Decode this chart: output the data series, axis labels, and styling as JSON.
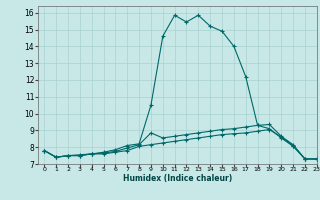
{
  "xlabel": "Humidex (Indice chaleur)",
  "background_color": "#c8e8e8",
  "grid_color": "#a8d0d0",
  "line_color": "#006868",
  "xlim": [
    -0.5,
    23
  ],
  "ylim": [
    7,
    16.4
  ],
  "yticks": [
    7,
    8,
    9,
    10,
    11,
    12,
    13,
    14,
    15,
    16
  ],
  "xticks": [
    0,
    1,
    2,
    3,
    4,
    5,
    6,
    7,
    8,
    9,
    10,
    11,
    12,
    13,
    14,
    15,
    16,
    17,
    18,
    19,
    20,
    21,
    22,
    23
  ],
  "series": [
    {
      "x": [
        0,
        1,
        2,
        3,
        4,
        5,
        6,
        7,
        8,
        9,
        10,
        11,
        12,
        13,
        14,
        15,
        16,
        17,
        18,
        19,
        20,
        21,
        22,
        23
      ],
      "y": [
        7.8,
        7.4,
        7.5,
        7.5,
        7.6,
        7.6,
        7.7,
        7.8,
        8.05,
        8.15,
        8.25,
        8.35,
        8.45,
        8.55,
        8.65,
        8.75,
        8.8,
        8.85,
        8.95,
        9.05,
        8.6,
        8.1,
        7.3,
        7.3
      ]
    },
    {
      "x": [
        0,
        1,
        2,
        3,
        4,
        5,
        6,
        7,
        8,
        9,
        10,
        11,
        12,
        13,
        14,
        15,
        16,
        17,
        18,
        19,
        20,
        21,
        22,
        23
      ],
      "y": [
        7.8,
        7.4,
        7.5,
        7.5,
        7.6,
        7.7,
        7.85,
        8.1,
        8.2,
        10.5,
        14.6,
        15.85,
        15.45,
        15.85,
        15.2,
        14.9,
        14.0,
        12.2,
        9.3,
        9.1,
        8.55,
        8.05,
        7.3,
        7.3
      ]
    },
    {
      "x": [
        0,
        1,
        2,
        3,
        4,
        5,
        6,
        7,
        8,
        9,
        10,
        11,
        12,
        13,
        14,
        15,
        16,
        17,
        18,
        19,
        20,
        21,
        22,
        23
      ],
      "y": [
        7.8,
        7.4,
        7.5,
        7.55,
        7.6,
        7.65,
        7.75,
        7.95,
        8.15,
        8.85,
        8.55,
        8.65,
        8.75,
        8.85,
        8.95,
        9.05,
        9.1,
        9.2,
        9.3,
        9.35,
        8.65,
        8.15,
        7.3,
        7.3
      ]
    }
  ]
}
